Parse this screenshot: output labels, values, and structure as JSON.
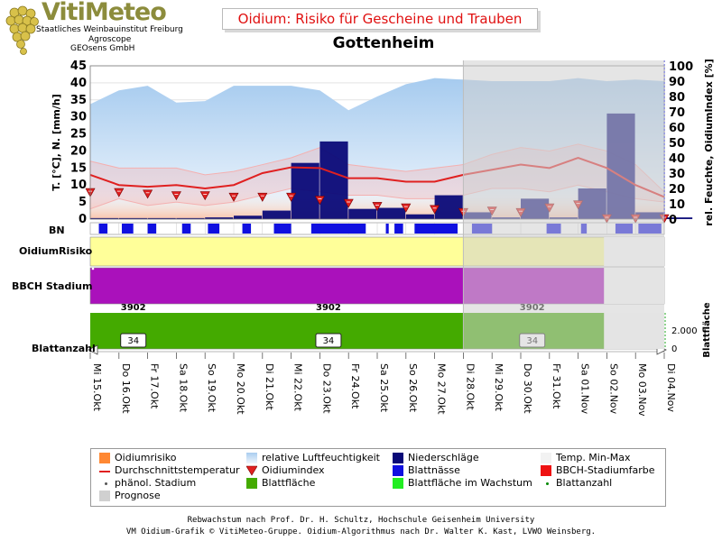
{
  "logo": {
    "brand": "VitiMeteo",
    "line1": "Staatliches Weinbauinstitut Freiburg",
    "line2": "Agroscope",
    "line3": "GEOsens GmbH"
  },
  "header": {
    "title": "Oidium: Risiko für Gescheine und Trauben",
    "subtitle": "Gottenheim"
  },
  "colors": {
    "humidity": "#a9cdef",
    "precip": "#0a0a78",
    "temp_line": "#e02020",
    "minmax": "#f4b0b0",
    "index_marker": "#e02020",
    "leaf_wetness": "#1010e0",
    "risk": "#ffff99",
    "bbch": "#aa11bb",
    "leaf_area": "#44aa00",
    "forecast": "#d0d0d0",
    "axis_right": "#3333cc"
  },
  "panel_labels": {
    "bn": "BN",
    "risk": "OidiumRisiko",
    "bbch": "BBCH Stadium",
    "leaf_count": "Blattanzahl"
  },
  "chart_data": {
    "type": "bar",
    "dates": [
      "Mi 15.Okt",
      "Do 16.Okt",
      "Fr 17.Okt",
      "Sa 18.Okt",
      "So 19.Okt",
      "Mo 20.Okt",
      "Di 21.Okt",
      "Mi 22.Okt",
      "Do 23.Okt",
      "Fr 24.Okt",
      "Sa 25.Okt",
      "So 26.Okt",
      "Mo 27.Okt",
      "Di 28.Okt",
      "Mi 29.Okt",
      "Do 30.Okt",
      "Fr 31.Okt",
      "Sa 01.Nov",
      "So 02.Nov",
      "Mo 03.Nov",
      "Di 04.Nov"
    ],
    "forecast_from_index": 14,
    "y_left": {
      "label": "T. [°C], N. [mm/h]",
      "min": 0,
      "max": 45,
      "ticks": [
        0,
        5,
        10,
        15,
        20,
        25,
        30,
        35,
        40,
        45
      ]
    },
    "y_right": {
      "label": "rel. Feuchte, OidiumIndex [%]",
      "min": 0,
      "max": 100,
      "ticks": [
        0,
        10,
        20,
        30,
        40,
        50,
        60,
        70,
        80,
        90,
        100
      ]
    },
    "series": [
      {
        "name": "relative Luftfeuchtigkeit",
        "axis": "right",
        "values": [
          75,
          84,
          87,
          76,
          77,
          87,
          87,
          87,
          84,
          71,
          80,
          88,
          92,
          91,
          90,
          90,
          90,
          92,
          90,
          91,
          90
        ]
      },
      {
        "name": "Niederschläge",
        "axis": "left",
        "values": [
          0.3,
          0.3,
          0.3,
          0.3,
          0.5,
          1,
          2.5,
          16.5,
          22.8,
          3,
          3.3,
          1.4,
          7,
          2,
          0.5,
          6,
          0.5,
          9,
          31,
          2,
          0.5
        ]
      },
      {
        "name": "Durchschnittstemperatur",
        "axis": "left",
        "values": [
          13,
          10,
          9.5,
          10,
          9,
          10,
          13.5,
          15.2,
          15,
          12,
          12,
          11,
          11,
          13,
          14.5,
          16,
          15,
          18,
          15,
          10,
          6.5
        ]
      },
      {
        "name": "Temp. Min-Max",
        "axis": "left",
        "values_min": [
          3,
          6,
          4,
          5,
          4,
          5,
          7,
          9,
          8,
          7,
          7,
          6,
          6,
          7,
          9,
          9,
          8,
          10,
          8,
          6,
          5
        ],
        "values_max": [
          17,
          15,
          15,
          15,
          13,
          14,
          16,
          18,
          21,
          16,
          15,
          14,
          15,
          16,
          19,
          21,
          20,
          22,
          20,
          16,
          8
        ]
      },
      {
        "name": "Oidiumindex",
        "axis": "right",
        "values": [
          17,
          17,
          16,
          15,
          15,
          14,
          14,
          14,
          12,
          10,
          8,
          7,
          6,
          4,
          5,
          4,
          7,
          9,
          0,
          0,
          0
        ]
      }
    ],
    "bn_wet": [
      [
        0.3,
        0.6
      ],
      [
        1.1,
        1.5
      ],
      [
        2.0,
        2.3
      ],
      [
        3.2,
        3.5
      ],
      [
        4.1,
        4.5
      ],
      [
        5.3,
        5.6
      ],
      [
        6.4,
        7.0
      ],
      [
        7.7,
        9.6
      ],
      [
        10.3,
        10.4
      ],
      [
        10.6,
        10.9
      ],
      [
        11.3,
        12.8
      ],
      [
        13.3,
        14.0
      ],
      [
        15.9,
        16.4
      ],
      [
        17.1,
        17.3
      ],
      [
        18.3,
        18.9
      ],
      [
        19.1,
        19.9
      ]
    ],
    "bbch_label": "3902",
    "bbch_label_positions": [
      1.5,
      8.3,
      15.4
    ],
    "leaf_counts": [
      "34",
      "34",
      "34"
    ],
    "leaf_count_positions": [
      1.5,
      8.3,
      15.4
    ],
    "leaf_area_ticks": [
      "0",
      "2.000"
    ],
    "leaf_area_label": "Blattfläche"
  },
  "legend": {
    "items": [
      {
        "label": "Oidiumrisiko",
        "icon": "square",
        "color": "#ff8833"
      },
      {
        "label": "relative Luftfeuchtigkeit",
        "icon": "area",
        "color": "#a9cdef"
      },
      {
        "label": "Niederschläge",
        "icon": "square",
        "color": "#0a0a78"
      },
      {
        "label": "Temp. Min-Max",
        "icon": "square",
        "color": "#f2f2f2"
      },
      {
        "label": "Durchschnittstemperatur",
        "icon": "line",
        "color": "#e02020"
      },
      {
        "label": "Oidiumindex",
        "icon": "triangle",
        "color": "#e02020"
      },
      {
        "label": "Blattnässe",
        "icon": "square",
        "color": "#1010e0"
      },
      {
        "label": "BBCH-Stadiumfarbe",
        "icon": "square",
        "color": "#ee1111"
      },
      {
        "label": "phänol. Stadium",
        "icon": "dot",
        "color": "#555555"
      },
      {
        "label": "Blattfläche",
        "icon": "square",
        "color": "#44aa00"
      },
      {
        "label": "Blattfläche im Wachstum",
        "icon": "square",
        "color": "#22ee22"
      },
      {
        "label": "Blattanzahl",
        "icon": "dot",
        "color": "#008800"
      },
      {
        "label": "Prognose",
        "icon": "square",
        "color": "#d0d0d0"
      }
    ]
  },
  "footer": {
    "line1": "Rebwachstum nach Prof. Dr. H. Schultz, Hochschule Geisenheim University",
    "line2": "VM Oidium-Grafik © VitiMeteo-Gruppe. Oidium-Algorithmus nach Dr. Walter K. Kast, LVWO Weinsberg."
  }
}
